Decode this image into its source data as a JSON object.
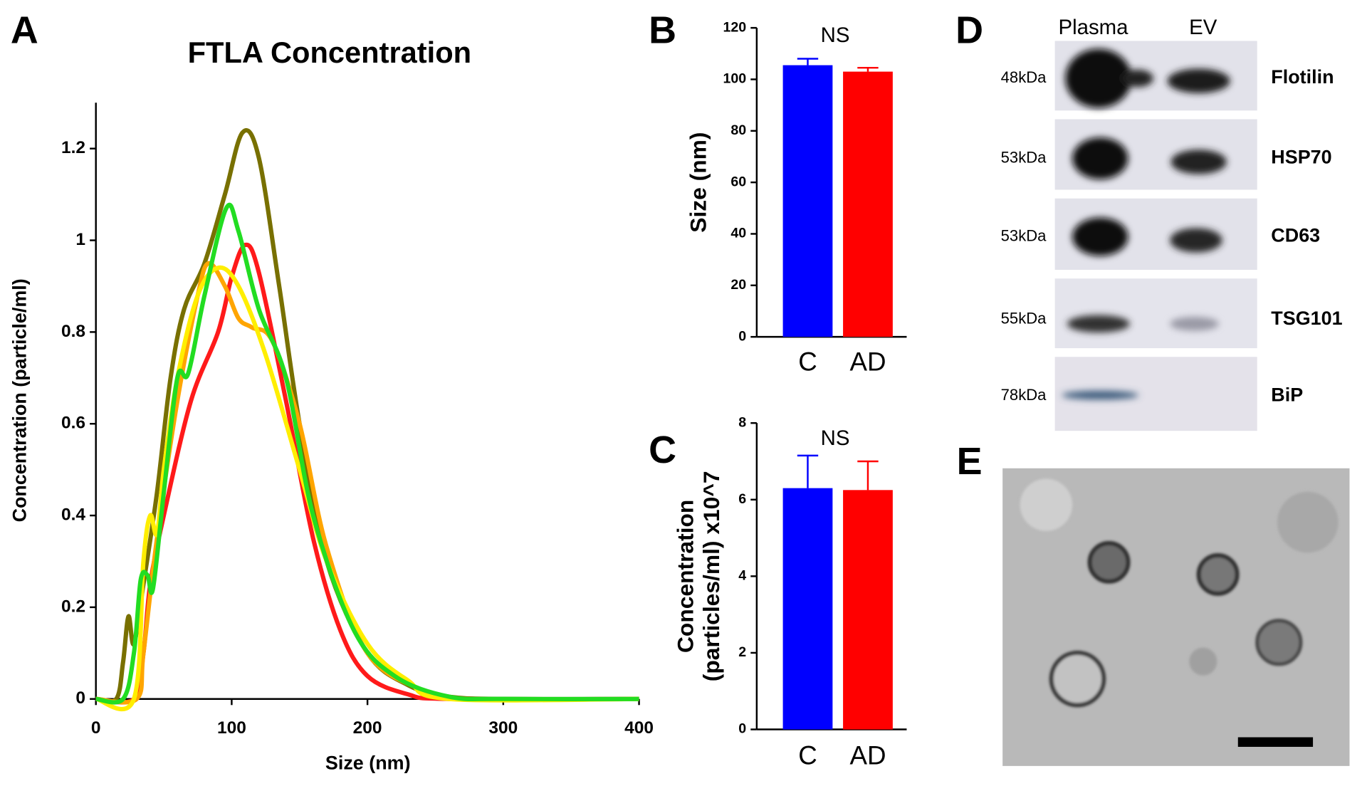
{
  "chart_data": [
    {
      "type": "line",
      "panel": "A",
      "title": "FTLA Concentration",
      "xlabel": "Size (nm)",
      "ylabel": "Concentration (particle/ml)",
      "xlim": [
        0,
        400
      ],
      "xticks": [
        0,
        100,
        200,
        300,
        400
      ],
      "ylim": [
        0,
        1.3
      ],
      "yticks": [
        0,
        0.2,
        0.4,
        0.6,
        0.8,
        1,
        1.2
      ],
      "series": [
        {
          "color": "#787000",
          "x": [
            0,
            15,
            20,
            24,
            28,
            35,
            45,
            55,
            65,
            80,
            95,
            108,
            120,
            135,
            150,
            170,
            200,
            230,
            260,
            300,
            400
          ],
          "values": [
            0,
            0,
            0.08,
            0.18,
            0.12,
            0.25,
            0.45,
            0.7,
            0.85,
            0.95,
            1.1,
            1.235,
            1.18,
            0.9,
            0.6,
            0.3,
            0.1,
            0.03,
            0.005,
            0,
            0
          ]
        },
        {
          "color": "#ff1a1a",
          "x": [
            0,
            28,
            35,
            40,
            50,
            70,
            90,
            100,
            110,
            120,
            140,
            160,
            180,
            200,
            230,
            260,
            400
          ],
          "values": [
            0,
            0,
            0.1,
            0.25,
            0.4,
            0.65,
            0.8,
            0.92,
            0.99,
            0.93,
            0.65,
            0.35,
            0.15,
            0.05,
            0.01,
            0,
            0
          ]
        },
        {
          "color": "#ffa500",
          "x": [
            0,
            30,
            35,
            45,
            60,
            75,
            83,
            95,
            105,
            115,
            130,
            150,
            170,
            200,
            240,
            270,
            400
          ],
          "values": [
            0,
            0,
            0.1,
            0.35,
            0.65,
            0.88,
            0.95,
            0.9,
            0.83,
            0.81,
            0.78,
            0.6,
            0.33,
            0.1,
            0.02,
            0,
            0
          ]
        },
        {
          "color": "#ffee00",
          "x": [
            0,
            28,
            35,
            40,
            45,
            50,
            60,
            75,
            90,
            105,
            125,
            150,
            170,
            200,
            230,
            260,
            400
          ],
          "values": [
            0,
            0,
            0.3,
            0.4,
            0.36,
            0.5,
            0.7,
            0.88,
            0.94,
            0.9,
            0.75,
            0.5,
            0.3,
            0.12,
            0.04,
            0,
            0
          ]
        },
        {
          "color": "#22dd22",
          "x": [
            0,
            20,
            28,
            33,
            38,
            42,
            50,
            60,
            68,
            80,
            96,
            105,
            120,
            140,
            160,
            190,
            220,
            260,
            300,
            400
          ],
          "values": [
            0,
            0,
            0.1,
            0.26,
            0.27,
            0.24,
            0.45,
            0.7,
            0.71,
            0.88,
            1.07,
            1.02,
            0.85,
            0.7,
            0.4,
            0.15,
            0.05,
            0.005,
            0,
            0
          ]
        }
      ]
    },
    {
      "type": "bar",
      "panel": "B",
      "ylabel": [
        "Size (nm)"
      ],
      "annotation": "NS",
      "categories": [
        "C",
        "AD"
      ],
      "values": [
        105.5,
        103
      ],
      "errors": [
        2.5,
        1.5
      ],
      "colors": [
        "#0000ff",
        "#ff0000"
      ],
      "ylim": [
        0,
        120
      ],
      "yticks": [
        0,
        20,
        40,
        60,
        80,
        100,
        120
      ]
    },
    {
      "type": "bar",
      "panel": "C",
      "ylabel": [
        "Concentration",
        "(particles/ml) x10^7"
      ],
      "annotation": "NS",
      "categories": [
        "C",
        "AD"
      ],
      "values": [
        6.3,
        6.25
      ],
      "errors": [
        0.85,
        0.75
      ],
      "colors": [
        "#0000ff",
        "#ff0000"
      ],
      "ylim": [
        0,
        8
      ],
      "yticks": [
        0,
        2,
        4,
        6,
        8
      ]
    }
  ],
  "blot": {
    "panel": "D",
    "columns": [
      "Plasma",
      "EV"
    ],
    "rows": [
      {
        "weight": "48kDa",
        "protein": "Flotilin"
      },
      {
        "weight": "53kDa",
        "protein": "HSP70"
      },
      {
        "weight": "53kDa",
        "protein": "CD63"
      },
      {
        "weight": "55kDa",
        "protein": "TSG101"
      },
      {
        "weight": "78kDa",
        "protein": "BiP"
      }
    ]
  },
  "micrograph": {
    "panel": "E"
  }
}
